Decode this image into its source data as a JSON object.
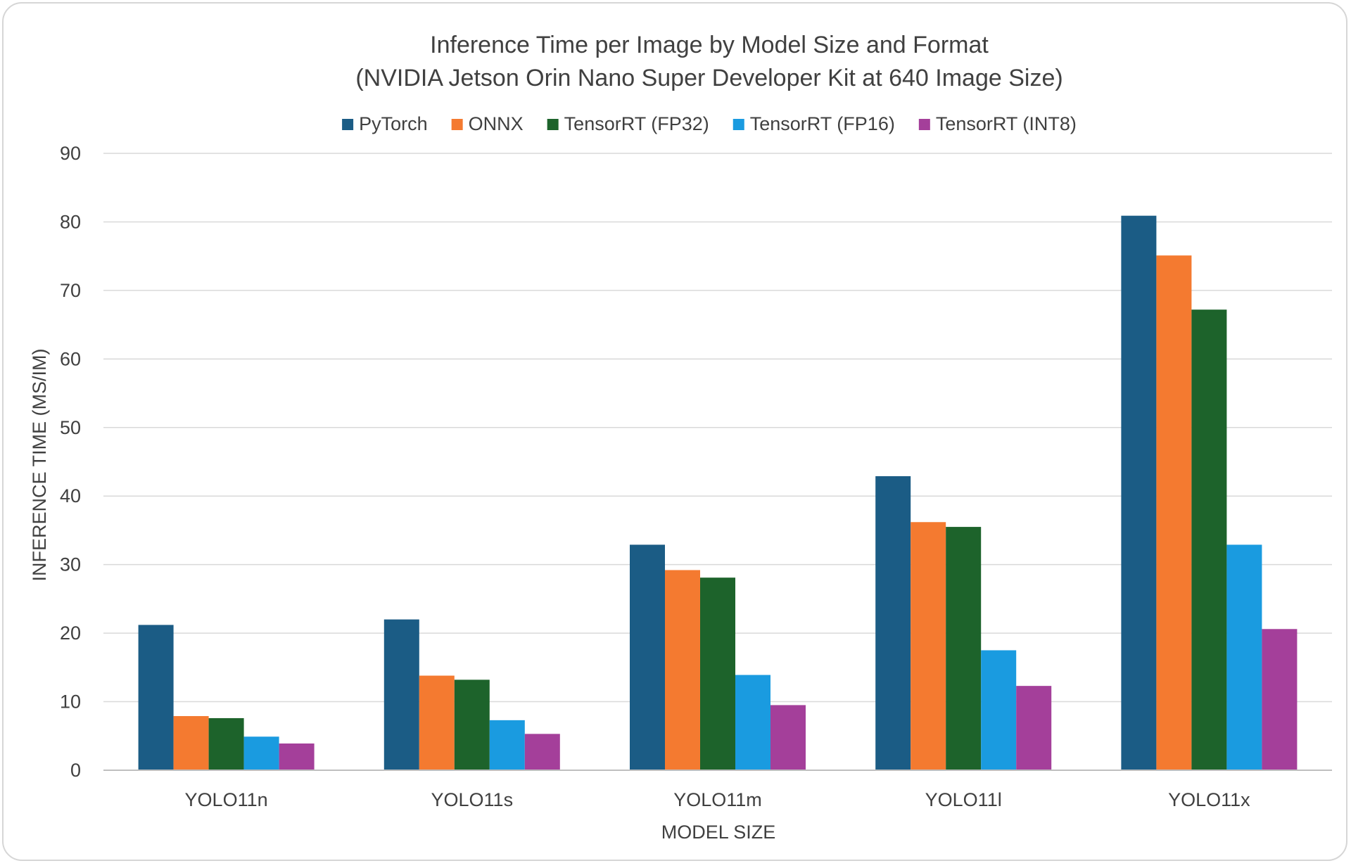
{
  "chart_data": {
    "type": "bar",
    "title": "Inference Time per Image by Model Size and Format",
    "subtitle": "(NVIDIA Jetson Orin Nano Super Developer Kit at 640 Image Size)",
    "xlabel": "MODEL SIZE",
    "ylabel": "INFERENCE TIME (MS/IM)",
    "ylim": [
      0,
      90
    ],
    "yticks": [
      0,
      10,
      20,
      30,
      40,
      50,
      60,
      70,
      80,
      90
    ],
    "grid": true,
    "legend_position": "top",
    "categories": [
      "YOLO11n",
      "YOLO11s",
      "YOLO11m",
      "YOLO11l",
      "YOLO11x"
    ],
    "series": [
      {
        "name": "PyTorch",
        "color": "#1b5c85",
        "values": [
          21.2,
          22.0,
          32.9,
          42.9,
          80.9
        ]
      },
      {
        "name": "ONNX",
        "color": "#f47a30",
        "values": [
          7.9,
          13.8,
          29.2,
          36.2,
          75.1
        ]
      },
      {
        "name": "TensorRT (FP32)",
        "color": "#1d632b",
        "values": [
          7.6,
          13.2,
          28.1,
          35.5,
          67.2
        ]
      },
      {
        "name": "TensorRT (FP16)",
        "color": "#1a9be0",
        "values": [
          4.9,
          7.3,
          13.9,
          17.5,
          32.9
        ]
      },
      {
        "name": "TensorRT (INT8)",
        "color": "#a43f9a",
        "values": [
          3.9,
          5.3,
          9.5,
          12.3,
          20.6
        ]
      }
    ]
  }
}
